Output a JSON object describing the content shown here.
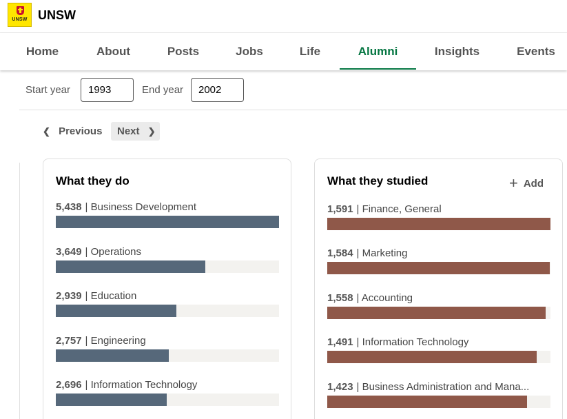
{
  "org": {
    "name": "UNSW",
    "logo_text": "UNSW",
    "logo_color": "#ffe600"
  },
  "nav": {
    "tabs": [
      {
        "label": "Home"
      },
      {
        "label": "About"
      },
      {
        "label": "Posts"
      },
      {
        "label": "Jobs"
      },
      {
        "label": "Life"
      },
      {
        "label": "Alumni"
      },
      {
        "label": "Insights"
      },
      {
        "label": "Events"
      }
    ],
    "active": "Alumni",
    "accent": "#057642"
  },
  "filters": {
    "start_label": "Start year",
    "start_value": "1993",
    "end_label": "End year",
    "end_value": "2002"
  },
  "pager": {
    "previous_label": "Previous",
    "next_label": "Next"
  },
  "cards": {
    "do": {
      "title": "What they do",
      "bar_color": "#56687a",
      "items": [
        {
          "count": "5,438",
          "label": "| Business Development",
          "value": 5438
        },
        {
          "count": "3,649",
          "label": "| Operations",
          "value": 3649
        },
        {
          "count": "2,939",
          "label": "| Education",
          "value": 2939
        },
        {
          "count": "2,757",
          "label": "| Engineering",
          "value": 2757
        },
        {
          "count": "2,696",
          "label": "| Information Technology",
          "value": 2696
        }
      ]
    },
    "studied": {
      "title": "What they studied",
      "add_label": "Add",
      "bar_color": "#8f5849",
      "items": [
        {
          "count": "1,591",
          "label": "| Finance, General",
          "value": 1591
        },
        {
          "count": "1,584",
          "label": "| Marketing",
          "value": 1584
        },
        {
          "count": "1,558",
          "label": "| Accounting",
          "value": 1558
        },
        {
          "count": "1,491",
          "label": "| Information Technology",
          "value": 1491
        },
        {
          "count": "1,423",
          "label": "| Business Administration and Mana...",
          "value": 1423
        }
      ]
    }
  }
}
